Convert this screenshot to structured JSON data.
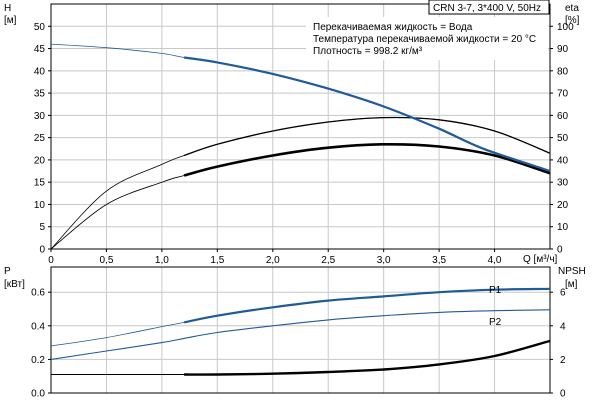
{
  "header": {
    "model": "CRN 3-7, 3*400 V, 50Hz",
    "liquid": "Перекачиваемая жидкость = Вода",
    "temperature": "Температура перекачиваемой жидкости = 20 °C",
    "density": "Плотность = 998.2 кг/м³"
  },
  "colors": {
    "pump_curve": "#1f5a99",
    "efficiency": "#000000",
    "grid": "#c8c8c8",
    "frame": "#000000"
  },
  "chart_data": [
    {
      "type": "line",
      "name": "head-efficiency",
      "xlabel": "Q [м³/ч]",
      "ylabel_left": "H",
      "ylabel_left_unit": "[м]",
      "ylabel_right": "eta",
      "ylabel_right_unit": "[%]",
      "xlim": [
        0,
        4.5
      ],
      "ylim_left": [
        0,
        55
      ],
      "ylim_right": [
        0,
        110
      ],
      "x_ticks": [
        "0",
        "0,5",
        "1,0",
        "1,5",
        "2,0",
        "2,5",
        "3,0",
        "3,5",
        "4,0"
      ],
      "y_ticks_left": [
        "0",
        "5",
        "10",
        "15",
        "20",
        "25",
        "30",
        "35",
        "40",
        "45",
        "50"
      ],
      "y_ticks_right": [
        "0",
        "10",
        "20",
        "30",
        "40",
        "50",
        "60",
        "70",
        "80",
        "90",
        "100"
      ],
      "x_tick_values": [
        0,
        0.5,
        1.0,
        1.5,
        2.0,
        2.5,
        3.0,
        3.5,
        4.0
      ],
      "y_tick_values_left": [
        0,
        5,
        10,
        15,
        20,
        25,
        30,
        35,
        40,
        45,
        50
      ],
      "grid": true,
      "series": [
        {
          "key": "H",
          "axis": "left",
          "x": [
            0,
            0.5,
            1.0,
            1.2,
            1.5,
            2.0,
            2.5,
            3.0,
            3.5,
            3.9,
            4.5
          ],
          "values": [
            46.0,
            45.2,
            43.9,
            43.0,
            41.9,
            39.3,
            36.0,
            32.0,
            27.0,
            22.5,
            17.5
          ],
          "operating_range": [
            1.2,
            4.5
          ]
        },
        {
          "key": "eta-thin",
          "axis": "right",
          "x": [
            0,
            0.5,
            1.0,
            1.2,
            1.5,
            2.0,
            2.5,
            3.0,
            3.5,
            4.0,
            4.5
          ],
          "values": [
            0,
            26,
            38,
            42,
            47,
            53,
            57,
            59,
            58,
            53,
            43
          ],
          "operating_range": [
            1.2,
            4.5
          ]
        },
        {
          "key": "eta-thick",
          "axis": "right",
          "x": [
            0,
            0.5,
            1.0,
            1.2,
            1.5,
            2.0,
            2.5,
            3.0,
            3.5,
            4.0,
            4.5
          ],
          "values": [
            0,
            20,
            30,
            33,
            37,
            42,
            45.5,
            47,
            46,
            42,
            34
          ],
          "operating_range": [
            1.2,
            4.5
          ]
        }
      ]
    },
    {
      "type": "line",
      "name": "power-npsh",
      "ylabel_left": "P",
      "ylabel_left_unit": "[кВт]",
      "ylabel_right": "NPSH",
      "ylabel_right_unit": "[м]",
      "xlim": [
        0,
        4.5
      ],
      "ylim_left": [
        0,
        0.75
      ],
      "ylim_right": [
        0,
        7.5
      ],
      "y_ticks_left": [
        "0.0",
        "0.2",
        "0.4",
        "0.6"
      ],
      "y_tick_values_left": [
        0,
        0.2,
        0.4,
        0.6
      ],
      "y_ticks_right": [
        "0",
        "2",
        "4",
        "6"
      ],
      "y_tick_values_right": [
        0,
        2,
        4,
        6
      ],
      "grid": true,
      "series": [
        {
          "name": "P1",
          "axis": "left",
          "x": [
            0,
            0.5,
            1.0,
            1.2,
            1.5,
            2.0,
            2.5,
            3.0,
            3.5,
            4.0,
            4.5
          ],
          "values": [
            0.28,
            0.33,
            0.395,
            0.42,
            0.46,
            0.51,
            0.55,
            0.575,
            0.6,
            0.615,
            0.62
          ],
          "operating_range": [
            1.2,
            4.5
          ]
        },
        {
          "name": "P2",
          "axis": "left",
          "x": [
            0,
            0.5,
            1.0,
            1.2,
            1.5,
            2.0,
            2.5,
            3.0,
            3.5,
            4.0,
            4.5
          ],
          "values": [
            0.2,
            0.25,
            0.3,
            0.325,
            0.36,
            0.4,
            0.435,
            0.46,
            0.48,
            0.49,
            0.495
          ]
        },
        {
          "key": "NPSH",
          "axis": "right",
          "x": [
            0,
            0.5,
            1.0,
            1.2,
            1.5,
            2.0,
            2.5,
            3.0,
            3.5,
            4.0,
            4.5
          ],
          "values": [
            1.1,
            1.1,
            1.1,
            1.1,
            1.1,
            1.15,
            1.25,
            1.4,
            1.7,
            2.2,
            3.1
          ]
        }
      ]
    }
  ]
}
